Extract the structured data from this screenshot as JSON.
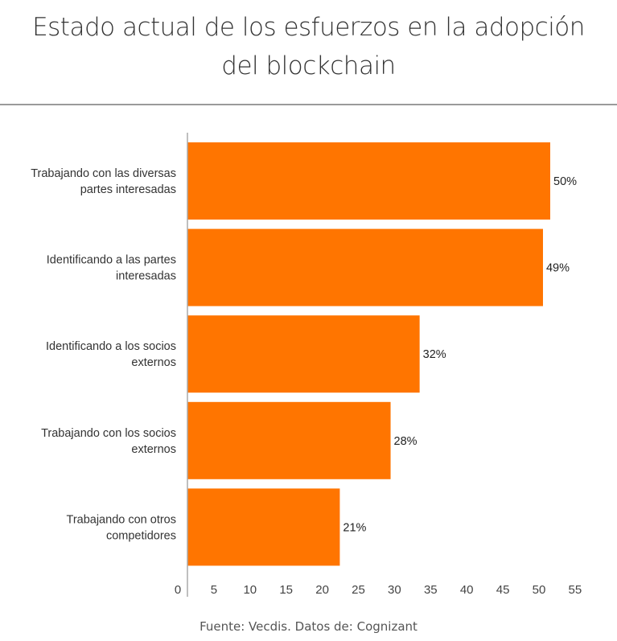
{
  "chart_data": {
    "type": "bar",
    "orientation": "horizontal",
    "title": "Estado actual de los esfuerzos en la adopción del blockchain",
    "title_lines": [
      "Estado actual de los esfuerzos en la adopción",
      "del blockchain"
    ],
    "categories": [
      [
        "Trabajando con las diversas",
        "partes interesadas"
      ],
      [
        "Identificando a las partes",
        "interesadas"
      ],
      [
        "Identificando a los socios",
        "externos"
      ],
      [
        "Trabajando con los socios",
        "externos"
      ],
      [
        "Trabajando con otros",
        "competidores"
      ]
    ],
    "values": [
      50,
      49,
      32,
      28,
      21
    ],
    "data_labels": [
      "50%",
      "49%",
      "32%",
      "28%",
      "21%"
    ],
    "xticks": [
      "0",
      "5",
      "10",
      "15",
      "20",
      "25",
      "30",
      "35",
      "40",
      "45",
      "50",
      "55"
    ],
    "xlim": [
      0,
      55
    ],
    "grid": false,
    "bar_color": "#ff7500",
    "source": "Fuente: Vecdis. Datos de: Cognizant"
  }
}
